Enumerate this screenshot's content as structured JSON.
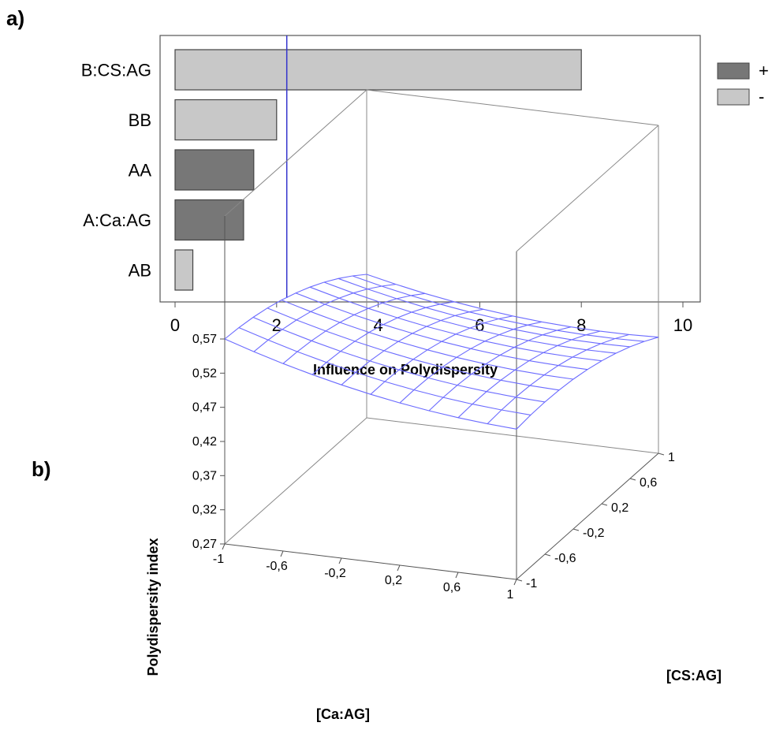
{
  "panel_labels": {
    "a": "a)",
    "b": "b)"
  },
  "chart_data": [
    {
      "type": "bar",
      "orientation": "horizontal",
      "title": "",
      "xlabel": "Influence on Polydispersity",
      "ylabel": "",
      "xlim": [
        0,
        10
      ],
      "xticks": [
        "0",
        "2",
        "4",
        "6",
        "8",
        "10"
      ],
      "categories": [
        "B:CS:AG",
        "BB",
        "AA",
        "A:Ca:AG",
        "AB"
      ],
      "values": [
        8.0,
        2.0,
        1.55,
        1.35,
        0.35
      ],
      "signs": [
        "-",
        "-",
        "+",
        "+",
        "-"
      ],
      "reference_line": 2.2,
      "legend": {
        "position": "right",
        "entries": [
          {
            "label": "+",
            "color": "#777777"
          },
          {
            "label": "-",
            "color": "#c8c8c8"
          }
        ]
      },
      "grid": false
    },
    {
      "type": "surface",
      "title": "",
      "xlabel": "[Ca:AG]",
      "ylabel": "[CS:AG]",
      "zlabel": "Polydispersity index",
      "xticks": [
        "-1",
        "-0,6",
        "-0,2",
        "0,2",
        "0,6",
        "1"
      ],
      "yticks": [
        "-1",
        "-0,6",
        "-0,2",
        "0,2",
        "0,6",
        "1"
      ],
      "zticks": [
        "0,27",
        "0,32",
        "0,37",
        "0,42",
        "0,47",
        "0,52",
        "0,57"
      ],
      "xlim": [
        -1,
        1
      ],
      "ylim": [
        -1,
        1
      ],
      "zlim": [
        0.27,
        0.57
      ],
      "surface_color": "#6b6bff"
    }
  ]
}
